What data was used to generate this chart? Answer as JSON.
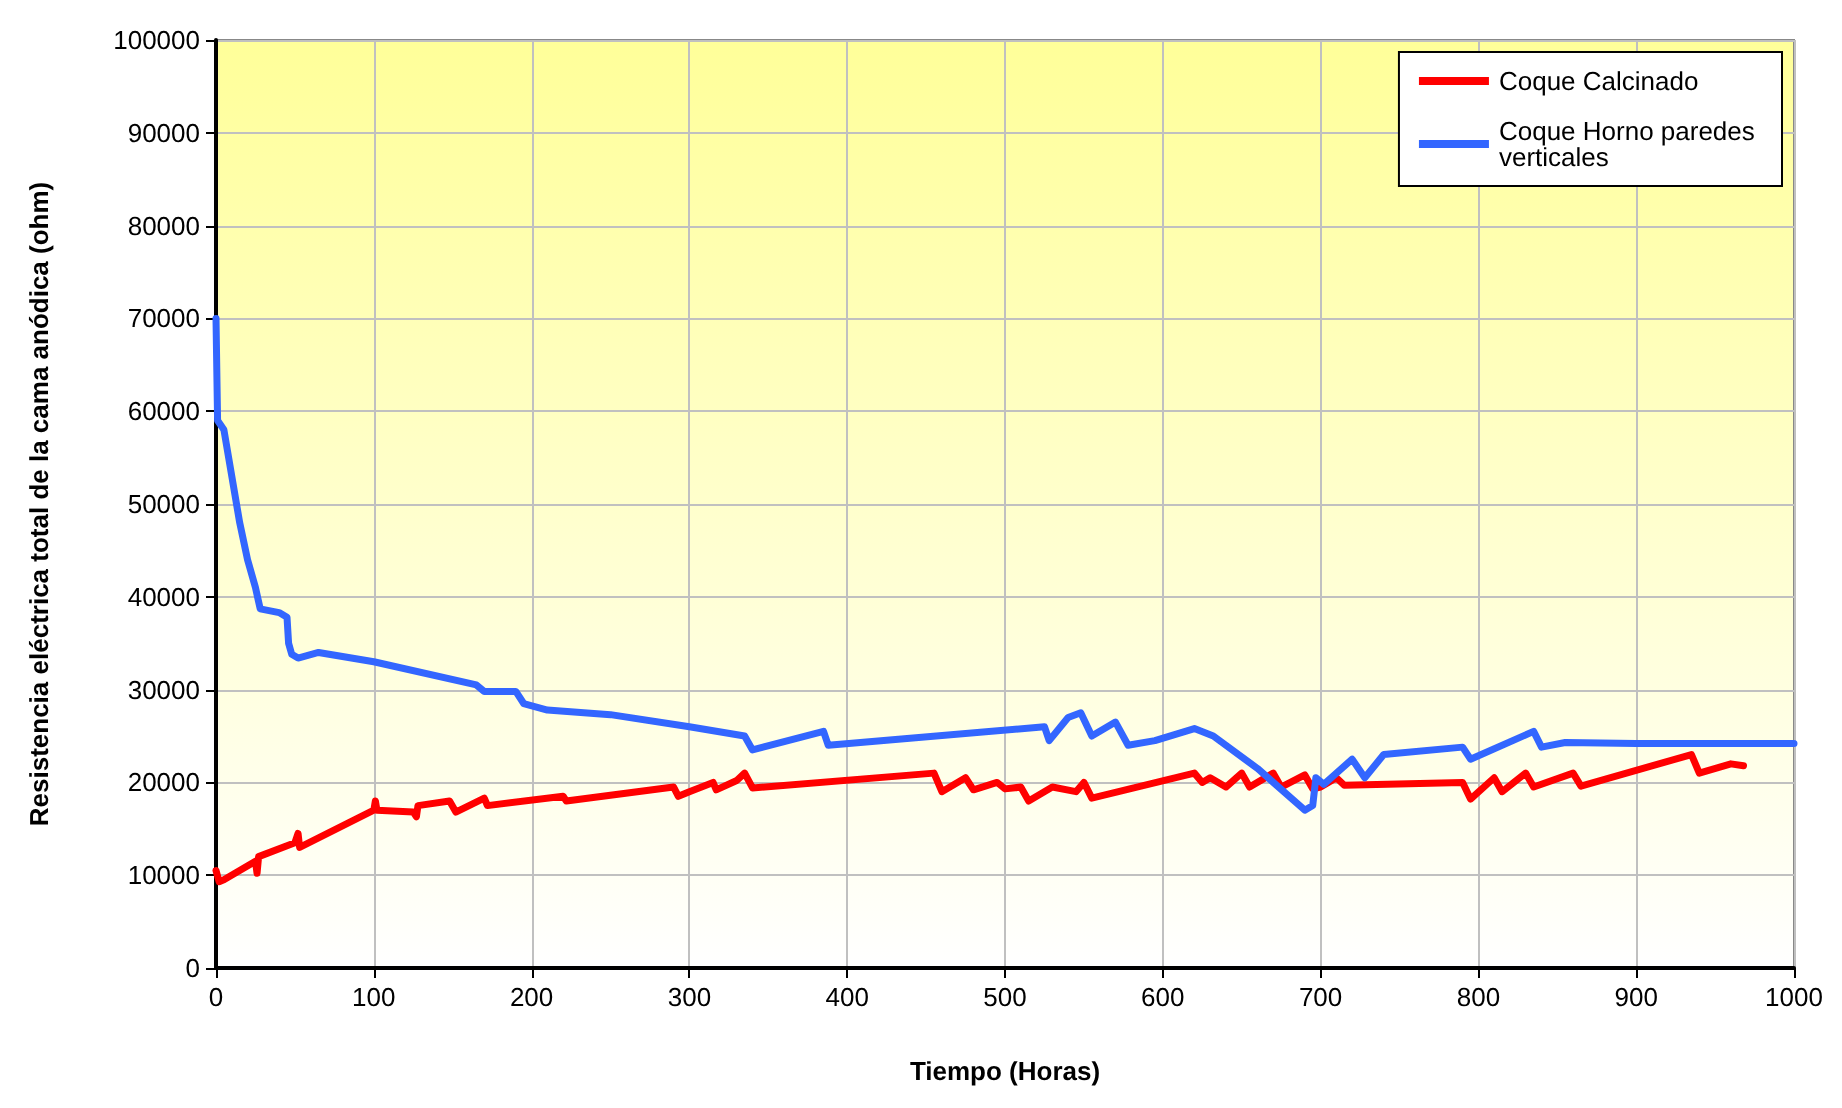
{
  "chart_data": {
    "type": "line",
    "xlabel": "Tiempo (Horas)",
    "ylabel": "Resistencia eléctrica total de la cama anódica (ohm)",
    "xlim": [
      0,
      1000
    ],
    "xticks": [
      0,
      100,
      200,
      300,
      400,
      500,
      600,
      700,
      800,
      900,
      1000
    ],
    "ylim": [
      0,
      100000
    ],
    "yticks": [
      0,
      10000,
      20000,
      30000,
      40000,
      50000,
      60000,
      70000,
      80000,
      90000,
      100000
    ],
    "grid": true,
    "legend": "top right",
    "marker": "none",
    "line_style": "solid",
    "series": [
      {
        "name": "Coque Calcinado",
        "color": "#ff0000",
        "x": [
          0,
          2,
          5,
          25,
          26,
          27,
          50,
          52,
          53,
          100,
          101,
          102,
          125,
          127,
          128,
          148,
          152,
          170,
          172,
          220,
          222,
          290,
          293,
          300,
          315,
          317,
          330,
          335,
          340,
          455,
          460,
          475,
          480,
          495,
          500,
          510,
          515,
          530,
          545,
          550,
          555,
          620,
          625,
          630,
          640,
          650,
          655,
          670,
          675,
          690,
          695,
          700,
          710,
          715,
          790,
          795,
          810,
          815,
          830,
          835,
          860,
          865,
          935,
          940,
          960,
          968
        ],
        "values": [
          10500,
          9300,
          9500,
          11500,
          10200,
          12000,
          13500,
          14500,
          13000,
          17000,
          18000,
          17000,
          16800,
          16300,
          17500,
          18000,
          16800,
          18300,
          17500,
          18500,
          18000,
          19500,
          18500,
          19000,
          20000,
          19200,
          20200,
          21000,
          19400,
          21000,
          19000,
          20500,
          19200,
          20000,
          19300,
          19500,
          18000,
          19500,
          19000,
          20000,
          18300,
          21000,
          20000,
          20500,
          19500,
          21000,
          19500,
          21000,
          19500,
          20800,
          19300,
          19500,
          20500,
          19700,
          20000,
          18200,
          20500,
          19000,
          21000,
          19500,
          21000,
          19600,
          23000,
          21000,
          22000,
          21800
        ]
      },
      {
        "name": "Coque Horno paredes verticales",
        "color": "#3366ff",
        "x": [
          0,
          1,
          5,
          15,
          20,
          25,
          28,
          40,
          45,
          46,
          48,
          52,
          65,
          100,
          165,
          170,
          190,
          195,
          210,
          250,
          300,
          335,
          340,
          385,
          388,
          525,
          528,
          540,
          548,
          555,
          570,
          578,
          595,
          620,
          632,
          660,
          690,
          695,
          697,
          702,
          720,
          728,
          740,
          790,
          795,
          835,
          840,
          855,
          900,
          1000
        ],
        "values": [
          70000,
          59000,
          58000,
          48000,
          44000,
          41000,
          38700,
          38300,
          37800,
          35000,
          33800,
          33400,
          34000,
          33000,
          30500,
          29800,
          29800,
          28500,
          27800,
          27300,
          26000,
          25000,
          23500,
          25500,
          24000,
          26000,
          24500,
          27000,
          27500,
          25000,
          26500,
          24000,
          24500,
          25800,
          25000,
          21500,
          17000,
          17500,
          20500,
          19800,
          22500,
          20500,
          23000,
          23800,
          22500,
          25500,
          23800,
          24300,
          24200,
          24200
        ]
      }
    ]
  }
}
